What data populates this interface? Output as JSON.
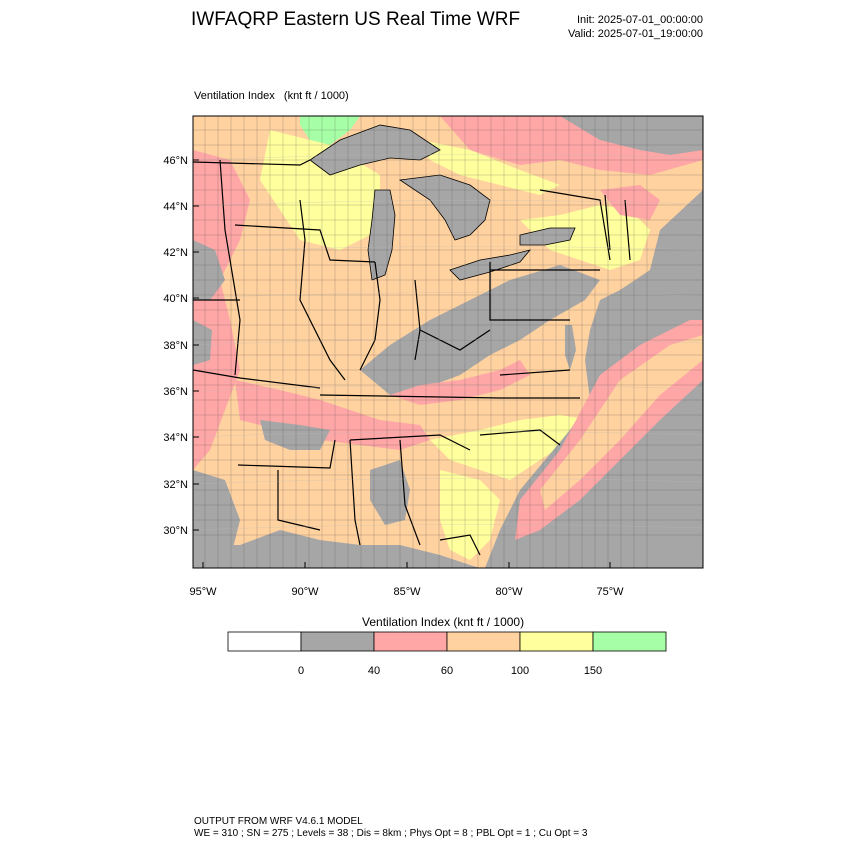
{
  "header": {
    "title": "IWFAQRP Eastern US Real Time WRF",
    "init": "Init: 2025-07-01_00:00:00",
    "valid": "Valid: 2025-07-01_19:00:00"
  },
  "field": {
    "name": "Ventilation Index",
    "units": "(knt ft / 1000)"
  },
  "map": {
    "lat_ticks": [
      "46°N",
      "44°N",
      "42°N",
      "40°N",
      "38°N",
      "36°N",
      "34°N",
      "32°N",
      "30°N"
    ],
    "lon_ticks": [
      "95°W",
      "90°W",
      "85°W",
      "80°W",
      "75°W"
    ],
    "water_color": "#a6a6a6",
    "border_color": "#000000"
  },
  "legend": {
    "title": "Ventilation Index  (knt ft / 1000)",
    "bins": [
      {
        "color": "#ffffff"
      },
      {
        "color": "#a6a6a6"
      },
      {
        "color": "#ffa6a6"
      },
      {
        "color": "#ffd2a0"
      },
      {
        "color": "#ffff9e"
      },
      {
        "color": "#a6ffa6"
      }
    ],
    "tick_labels": [
      "0",
      "40",
      "60",
      "100",
      "150"
    ]
  },
  "footer": {
    "line1": "OUTPUT FROM WRF V4.6.1 MODEL",
    "line2": "WE = 310 ; SN = 275 ; Levels = 38 ; Dis = 8km ; Phys Opt = 8 ; PBL Opt = 1 ; Cu Opt = 3"
  }
}
